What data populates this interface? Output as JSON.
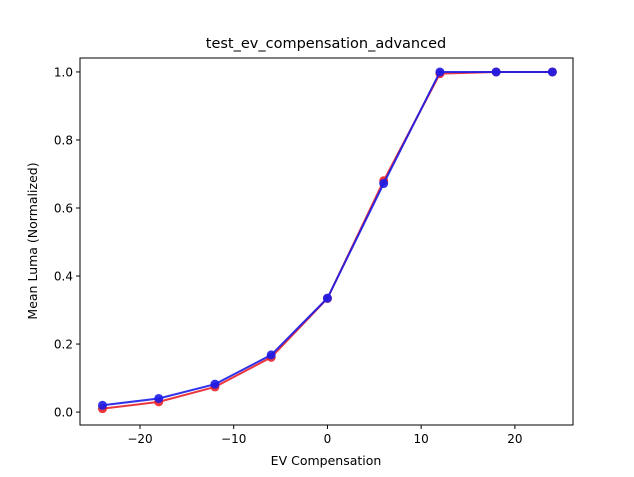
{
  "chart_data": {
    "type": "line",
    "title": "test_ev_compensation_advanced",
    "xlabel": "EV Compensation",
    "ylabel": "Mean Luma (Normalized)",
    "xlim": [
      -26.4,
      26.2
    ],
    "ylim": [
      -0.038,
      1.041
    ],
    "xticks": [
      -20,
      -10,
      0,
      10,
      20
    ],
    "xtick_labels": [
      "−20",
      "−10",
      "0",
      "10",
      "20"
    ],
    "yticks": [
      0.0,
      0.2,
      0.4,
      0.6,
      0.8,
      1.0
    ],
    "ytick_labels": [
      "0.0",
      "0.2",
      "0.4",
      "0.6",
      "0.8",
      "1.0"
    ],
    "grid": false,
    "x": [
      -24,
      -18,
      -12,
      -6,
      0,
      6,
      12,
      18,
      24
    ],
    "series": [
      {
        "color": "#e8202a",
        "marker": "circle",
        "values": [
          0.01,
          0.03,
          0.074,
          0.161,
          0.334,
          0.68,
          0.995,
          1.0,
          1.0
        ]
      },
      {
        "color": "#1c1ce8",
        "marker": "circle",
        "values": [
          0.02,
          0.04,
          0.082,
          0.168,
          0.335,
          0.672,
          1.0,
          1.0,
          1.0
        ]
      }
    ]
  }
}
